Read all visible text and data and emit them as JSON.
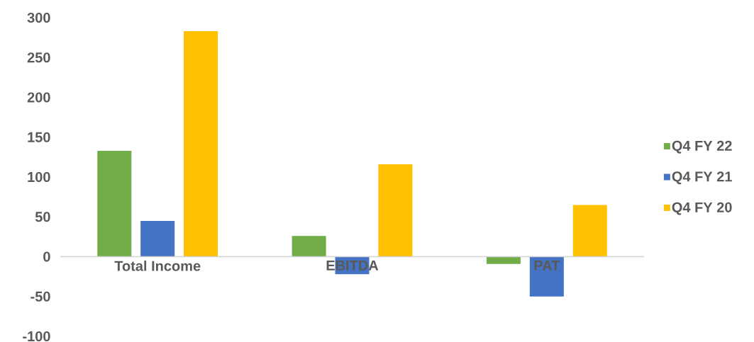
{
  "chart_data": {
    "type": "bar",
    "categories": [
      "Total Income",
      "EBITDA",
      "PAT"
    ],
    "series": [
      {
        "name": "Q4 FY 22",
        "color": "#70ad47",
        "values": [
          133,
          26,
          -9
        ]
      },
      {
        "name": "Q4 FY 21",
        "color": "#4472c4",
        "values": [
          45,
          -22,
          -50
        ]
      },
      {
        "name": "Q4 FY 20",
        "color": "#ffc000",
        "values": [
          283,
          116,
          65
        ]
      }
    ],
    "ylim": [
      -100,
      300
    ],
    "yticks": [
      -100,
      -50,
      0,
      50,
      100,
      150,
      200,
      250,
      300
    ],
    "grid": false,
    "legend": "right"
  }
}
